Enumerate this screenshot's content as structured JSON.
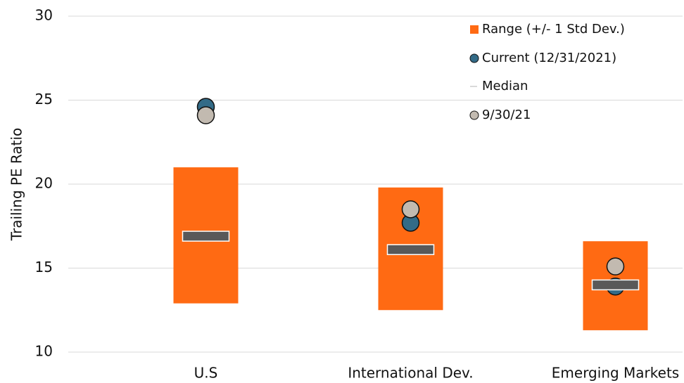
{
  "chart_data": {
    "type": "range",
    "y_label": "Trailing PE Ratio",
    "categories": [
      "U.S",
      "International Dev.",
      "Emerging Markets"
    ],
    "series": [
      {
        "name": "Range (+/- 1 Std Dev.)",
        "color": "#ff6a13",
        "low": [
          12.9,
          12.5,
          11.3
        ],
        "high": [
          21.0,
          19.8,
          16.6
        ]
      },
      {
        "name": "Current (12/31/2021)",
        "color": "#336b87",
        "values": [
          24.6,
          17.7,
          13.9
        ]
      },
      {
        "name": "Median",
        "color": "#595959",
        "values": [
          16.9,
          16.1,
          14.0
        ]
      },
      {
        "name": "9/30/21",
        "color": "#c2bab0",
        "values": [
          24.1,
          18.5,
          15.1
        ]
      }
    ],
    "ylim": [
      10,
      30
    ],
    "yticks": [
      10,
      15,
      20,
      25,
      30
    ],
    "grid": true,
    "legend": "top-right"
  }
}
